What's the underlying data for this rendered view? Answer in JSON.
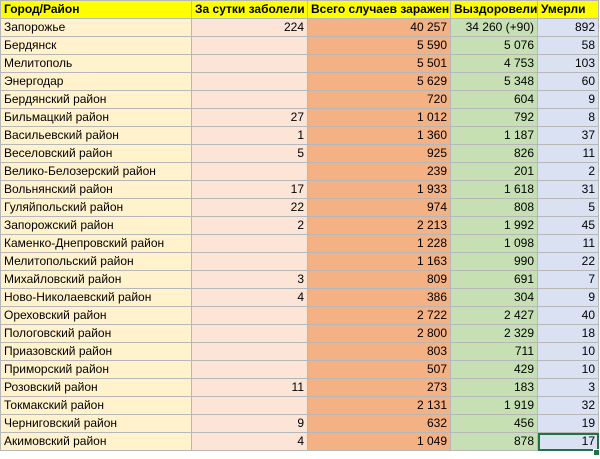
{
  "columns": {
    "name": "Город/Район",
    "day": "За сутки заболели",
    "total": "Всего случаев заражения",
    "recovered": "Выздоровели",
    "deaths": "Умерли"
  },
  "rows": [
    {
      "name": "Запорожье",
      "day": "224",
      "total": "40 257",
      "recovered": "34 260 (+90)",
      "deaths": "892"
    },
    {
      "name": "Бердянск",
      "day": "",
      "total": "5 590",
      "recovered": "5 076",
      "deaths": "58"
    },
    {
      "name": "Мелитополь",
      "day": "",
      "total": "5 501",
      "recovered": "4 753",
      "deaths": "103"
    },
    {
      "name": "Энергодар",
      "day": "",
      "total": "5 629",
      "recovered": "5 348",
      "deaths": "60"
    },
    {
      "name": "Бердянский район",
      "day": "",
      "total": "720",
      "recovered": "604",
      "deaths": "9"
    },
    {
      "name": "Бильмацкий район",
      "day": "27",
      "total": "1 012",
      "recovered": "792",
      "deaths": "8"
    },
    {
      "name": "Васильевский район",
      "day": "1",
      "total": "1 360",
      "recovered": "1 187",
      "deaths": "37"
    },
    {
      "name": "Веселовский район",
      "day": "5",
      "total": "925",
      "recovered": "826",
      "deaths": "11"
    },
    {
      "name": "Велико-Белозерский район",
      "day": "",
      "total": "239",
      "recovered": "201",
      "deaths": "2"
    },
    {
      "name": "Вольнянский район",
      "day": "17",
      "total": "1 933",
      "recovered": "1 618",
      "deaths": "31"
    },
    {
      "name": "Гуляйпольский район",
      "day": "22",
      "total": "974",
      "recovered": "808",
      "deaths": "5"
    },
    {
      "name": "Запорожский район",
      "day": "2",
      "total": "2 213",
      "recovered": "1 992",
      "deaths": "45"
    },
    {
      "name": "Каменко-Днепровский район",
      "day": "",
      "total": "1 228",
      "recovered": "1 098",
      "deaths": "11"
    },
    {
      "name": "Мелитопольский район",
      "day": "",
      "total": "1 163",
      "recovered": "990",
      "deaths": "22"
    },
    {
      "name": "Михайловский район",
      "day": "3",
      "total": "809",
      "recovered": "691",
      "deaths": "7"
    },
    {
      "name": "Ново-Николаевский район",
      "day": "4",
      "total": "386",
      "recovered": "304",
      "deaths": "9"
    },
    {
      "name": "Ореховский район",
      "day": "",
      "total": "2 722",
      "recovered": "2 427",
      "deaths": "40"
    },
    {
      "name": "Пологовский район",
      "day": "",
      "total": "2 800",
      "recovered": "2 329",
      "deaths": "18"
    },
    {
      "name": "Приазовский район",
      "day": "",
      "total": "803",
      "recovered": "711",
      "deaths": "10"
    },
    {
      "name": "Приморский район",
      "day": "",
      "total": "507",
      "recovered": "429",
      "deaths": "10"
    },
    {
      "name": "Розовский район",
      "day": "11",
      "total": "273",
      "recovered": "183",
      "deaths": "3"
    },
    {
      "name": "Токмакский район",
      "day": "",
      "total": "2 131",
      "recovered": "1 919",
      "deaths": "32"
    },
    {
      "name": "Черниговский район",
      "day": "9",
      "total": "632",
      "recovered": "456",
      "deaths": "19"
    },
    {
      "name": "Акимовский район",
      "day": "4",
      "total": "1 049",
      "recovered": "878",
      "deaths": "17"
    }
  ],
  "colors": {
    "header": "#ffff00",
    "name": "#fff2cc",
    "day": "#fce4d6",
    "total": "#f4b183",
    "recovered": "#c6e0b4",
    "deaths": "#d9e1f2",
    "selection": "#217346"
  }
}
